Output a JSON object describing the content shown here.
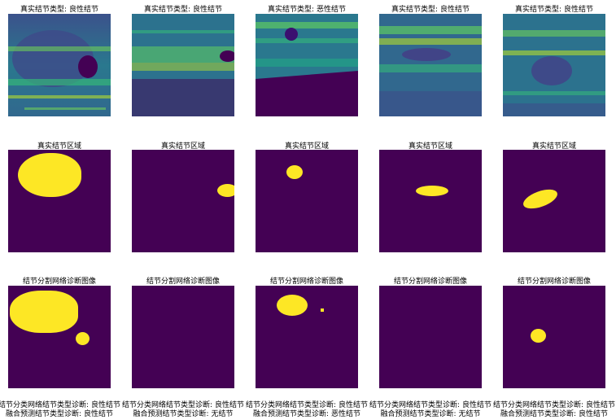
{
  "row1": [
    {
      "title": "真实结节类型:  良性结节"
    },
    {
      "title": "真实结节类型:  良性结节"
    },
    {
      "title": "真实结节类型:  恶性结节"
    },
    {
      "title": "真实结节类型:  良性结节"
    },
    {
      "title": "真实结节类型:  良性结节"
    }
  ],
  "row2": [
    {
      "title": "真实结节区域"
    },
    {
      "title": "真实结节区域"
    },
    {
      "title": "真实结节区域"
    },
    {
      "title": "真实结节区域"
    },
    {
      "title": "真实结节区域"
    }
  ],
  "row3": [
    {
      "title": "结节分割网络诊断图像"
    },
    {
      "title": "结节分割网络诊断图像"
    },
    {
      "title": "结节分割网络诊断图像"
    },
    {
      "title": "结节分割网络诊断图像"
    },
    {
      "title": "结节分割网络诊断图像"
    }
  ],
  "captions": [
    {
      "line1": "结节分类网络结节类型诊断: 良性结节",
      "line2": "融合预测结节类型诊断: 良性结节"
    },
    {
      "line1": "结节分类网络结节类型诊断: 良性结节",
      "line2": "融合预测结节类型诊断: 无结节"
    },
    {
      "line1": "结节分类网络结节类型诊断: 良性结节",
      "line2": "融合预测结节类型诊断: 恶性结节"
    },
    {
      "line1": "结节分类网络结节类型诊断: 良性结节",
      "line2": "融合预测结节类型诊断: 无结节"
    },
    {
      "line1": "结节分类网络结节类型诊断: 良性结节",
      "line2": "融合预测结节类型诊断: 良性结节"
    }
  ],
  "colors": {
    "mask_background": "#440154",
    "mask_foreground": "#fde725"
  }
}
